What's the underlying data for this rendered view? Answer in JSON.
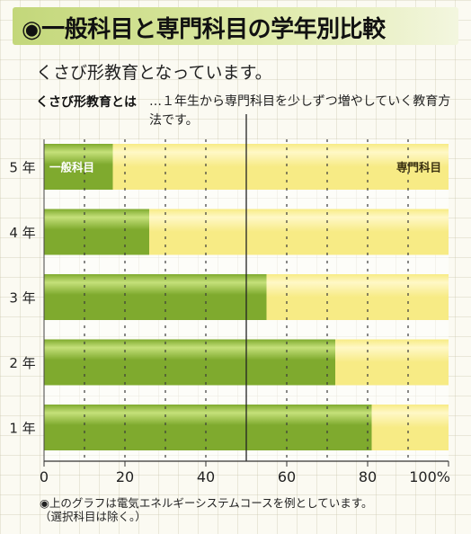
{
  "header": {
    "title": "◉一般科目と専門科目の学年別比較",
    "subtitle": "くさび形教育となっています。",
    "definition_term": "くさび形教育とは",
    "definition_text": "…１年生から専門科目を少しずつ増やしていく教育方法です。"
  },
  "colors": {
    "general": "#7faa2e",
    "general_highlight": "#c5e07a",
    "specialized": "#f7eb85",
    "specialized_highlight": "#fff8c6"
  },
  "chart_data": {
    "type": "bar",
    "orientation": "horizontal",
    "stacked": true,
    "categories": [
      "5 年",
      "4 年",
      "3 年",
      "2 年",
      "1 年"
    ],
    "series": [
      {
        "name": "一般科目",
        "values": [
          17,
          26,
          55,
          72,
          81
        ]
      },
      {
        "name": "専門科目",
        "values": [
          83,
          74,
          45,
          28,
          19
        ]
      }
    ],
    "x_ticks": [
      "0",
      "20",
      "40",
      "60",
      "80",
      "100%"
    ],
    "x_tick_values": [
      0,
      20,
      40,
      60,
      80,
      100
    ],
    "xlim": [
      0,
      100
    ],
    "reference_line": 50,
    "grid": true
  },
  "footnote": {
    "line1": "◉上のグラフは電気エネルギーシステムコースを例としています。",
    "line2": "（選択科目は除く。）"
  }
}
